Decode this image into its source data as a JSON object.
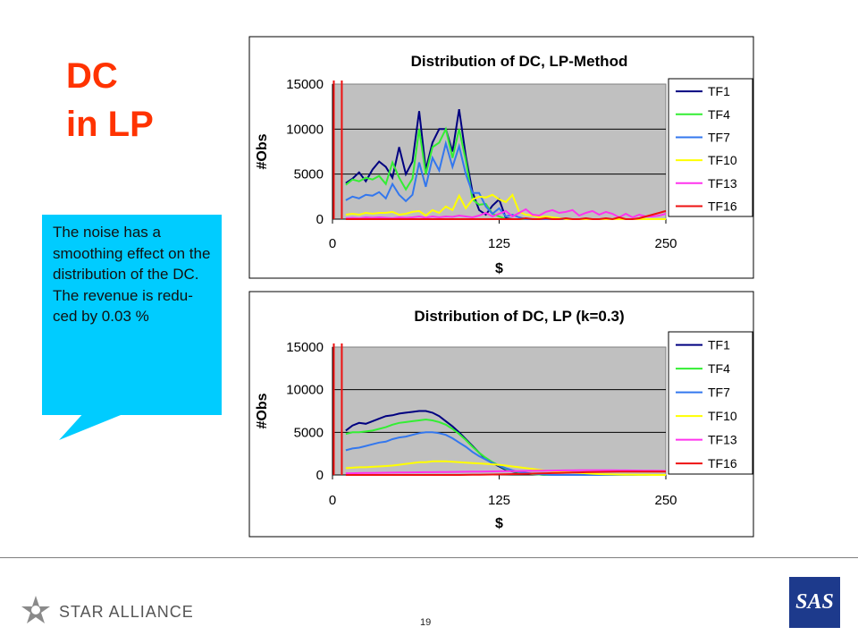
{
  "slide": {
    "title_line1": "DC",
    "title_line2": "in LP",
    "callout_text": "The noise has a smoothing effect on the distribution of the DC. The revenue is redu-ced by 0.03 %",
    "page_number": "19",
    "footer_logo_text": "STAR ALLIANCE",
    "brand_logo_text": "SAS"
  },
  "colors": {
    "title": "#ff3300",
    "callout": "#00ccff",
    "plot_area": "#c0c0c0",
    "TF1": "#000080",
    "TF4": "#33ee33",
    "TF7": "#3377ee",
    "TF10": "#ffff00",
    "TF13": "#ff33ee",
    "TF16": "#ee1111"
  },
  "chart_data": [
    {
      "type": "line",
      "title": "Distribution of DC, LP-Method",
      "xlabel": "$",
      "ylabel": "#Obs",
      "xlim": [
        0,
        250
      ],
      "ylim": [
        0,
        15000
      ],
      "xticks": [
        "0",
        "125",
        "250"
      ],
      "yticks": [
        "0",
        "5000",
        "10000",
        "15000"
      ],
      "legend_position": "right",
      "grid": true,
      "x": [
        0,
        5,
        10,
        15,
        20,
        25,
        30,
        35,
        40,
        45,
        50,
        55,
        60,
        65,
        70,
        75,
        80,
        85,
        90,
        95,
        100,
        105,
        110,
        115,
        120,
        125,
        130,
        135,
        140,
        145,
        150,
        155,
        160,
        165,
        170,
        175,
        180,
        185,
        190,
        195,
        200,
        205,
        210,
        215,
        220,
        225,
        230,
        235,
        240,
        245,
        250
      ],
      "series": [
        {
          "name": "TF1",
          "values": [
            null,
            null,
            4000,
            4500,
            5200,
            4200,
            5500,
            6400,
            5800,
            4600,
            8000,
            5000,
            6400,
            12000,
            5500,
            8500,
            10000,
            10000,
            7500,
            12200,
            7000,
            3000,
            1000,
            500,
            1500,
            2200,
            100,
            0,
            0,
            0,
            0,
            0,
            0,
            0,
            0,
            0,
            0,
            0,
            0,
            0,
            0,
            0,
            0,
            0,
            0,
            0,
            0,
            0,
            0,
            0,
            0
          ]
        },
        {
          "name": "TF4",
          "values": [
            null,
            null,
            3800,
            4400,
            4200,
            4600,
            4400,
            4800,
            3900,
            6300,
            4600,
            3300,
            4500,
            10000,
            5000,
            8000,
            8500,
            10000,
            6800,
            10000,
            6500,
            2200,
            1600,
            1700,
            600,
            300,
            0,
            0,
            0,
            0,
            0,
            0,
            0,
            0,
            0,
            0,
            0,
            0,
            0,
            0,
            0,
            0,
            0,
            0,
            0,
            0,
            0,
            0,
            0,
            0,
            0
          ]
        },
        {
          "name": "TF7",
          "values": [
            null,
            null,
            2100,
            2500,
            2300,
            2700,
            2600,
            3000,
            2300,
            3900,
            2700,
            2000,
            2700,
            6300,
            3600,
            6800,
            5400,
            8400,
            5800,
            8100,
            5000,
            2900,
            2900,
            1400,
            600,
            1200,
            300,
            500,
            200,
            0,
            0,
            0,
            0,
            0,
            0,
            0,
            0,
            0,
            0,
            0,
            0,
            0,
            0,
            0,
            0,
            0,
            0,
            0,
            0,
            0,
            0
          ]
        },
        {
          "name": "TF10",
          "values": [
            null,
            null,
            500,
            600,
            500,
            700,
            600,
            700,
            700,
            800,
            500,
            600,
            800,
            900,
            400,
            1000,
            700,
            1400,
            1000,
            2600,
            1200,
            2200,
            2500,
            2400,
            2700,
            2200,
            1900,
            2700,
            800,
            500,
            400,
            200,
            300,
            200,
            100,
            0,
            0,
            0,
            0,
            0,
            0,
            0,
            0,
            0,
            0,
            0,
            0,
            0,
            0,
            0,
            0
          ]
        },
        {
          "name": "TF13",
          "values": [
            null,
            null,
            100,
            150,
            100,
            200,
            150,
            200,
            150,
            100,
            200,
            150,
            200,
            300,
            150,
            300,
            200,
            300,
            250,
            400,
            300,
            200,
            400,
            700,
            300,
            600,
            900,
            300,
            700,
            1100,
            500,
            400,
            800,
            1000,
            700,
            800,
            1000,
            400,
            700,
            900,
            500,
            800,
            600,
            200,
            600,
            200,
            500,
            300,
            300,
            400,
            600
          ]
        },
        {
          "name": "TF16",
          "values": [
            null,
            null,
            0,
            0,
            0,
            0,
            0,
            0,
            0,
            0,
            0,
            0,
            0,
            0,
            0,
            0,
            0,
            0,
            0,
            0,
            0,
            0,
            0,
            0,
            0,
            0,
            0,
            0,
            0,
            100,
            0,
            0,
            100,
            0,
            0,
            100,
            0,
            0,
            100,
            0,
            0,
            100,
            0,
            200,
            0,
            0,
            100,
            300,
            500,
            700,
            900
          ]
        }
      ]
    },
    {
      "type": "line",
      "title": "Distribution of DC, LP (k=0.3)",
      "xlabel": "$",
      "ylabel": "#Obs",
      "xlim": [
        0,
        250
      ],
      "ylim": [
        0,
        15000
      ],
      "xticks": [
        "0",
        "125",
        "250"
      ],
      "yticks": [
        "0",
        "5000",
        "10000",
        "15000"
      ],
      "legend_position": "right",
      "grid": true,
      "x": [
        0,
        5,
        10,
        15,
        20,
        25,
        30,
        35,
        40,
        45,
        50,
        55,
        60,
        65,
        70,
        75,
        80,
        85,
        90,
        95,
        100,
        105,
        110,
        115,
        120,
        125,
        130,
        135,
        140,
        145,
        150,
        155,
        160,
        165,
        170,
        175,
        180,
        185,
        190,
        195,
        200,
        205,
        210,
        215,
        220,
        225,
        230,
        235,
        240,
        245,
        250
      ],
      "series": [
        {
          "name": "TF1",
          "values": [
            null,
            null,
            5200,
            5800,
            6100,
            6000,
            6300,
            6600,
            6900,
            7000,
            7200,
            7300,
            7400,
            7500,
            7500,
            7300,
            6900,
            6300,
            5700,
            5000,
            4200,
            3400,
            2600,
            1900,
            1400,
            1000,
            600,
            400,
            250,
            150,
            100,
            50,
            0,
            0,
            0,
            0,
            0,
            0,
            0,
            0,
            0,
            0,
            0,
            0,
            0,
            0,
            0,
            0,
            0,
            0,
            0
          ]
        },
        {
          "name": "TF4",
          "values": [
            null,
            null,
            4800,
            5000,
            5000,
            5100,
            5200,
            5400,
            5600,
            5900,
            6100,
            6200,
            6300,
            6400,
            6500,
            6400,
            6200,
            5900,
            5400,
            4800,
            4100,
            3300,
            2600,
            2000,
            1500,
            1100,
            700,
            450,
            300,
            200,
            100,
            50,
            0,
            0,
            0,
            0,
            0,
            0,
            0,
            0,
            0,
            0,
            0,
            0,
            0,
            0,
            0,
            0,
            0,
            0,
            0
          ]
        },
        {
          "name": "TF7",
          "values": [
            null,
            null,
            2900,
            3100,
            3200,
            3400,
            3600,
            3800,
            3900,
            4200,
            4400,
            4500,
            4700,
            4900,
            5000,
            5000,
            4900,
            4700,
            4300,
            3800,
            3300,
            2700,
            2200,
            1800,
            1400,
            1100,
            800,
            550,
            350,
            250,
            150,
            100,
            50,
            0,
            0,
            0,
            0,
            0,
            0,
            0,
            0,
            0,
            0,
            0,
            0,
            0,
            0,
            0,
            0,
            0,
            0
          ]
        },
        {
          "name": "TF10",
          "values": [
            null,
            null,
            800,
            850,
            900,
            900,
            950,
            1000,
            1050,
            1100,
            1200,
            1300,
            1400,
            1500,
            1500,
            1600,
            1600,
            1600,
            1550,
            1500,
            1450,
            1400,
            1350,
            1300,
            1250,
            1200,
            1100,
            1000,
            900,
            800,
            700,
            600,
            500,
            450,
            400,
            350,
            300,
            250,
            200,
            150,
            100,
            80,
            60,
            40,
            30,
            20,
            10,
            10,
            0,
            0,
            0
          ]
        },
        {
          "name": "TF13",
          "values": [
            null,
            null,
            200,
            200,
            220,
            230,
            240,
            250,
            260,
            270,
            280,
            290,
            300,
            310,
            320,
            330,
            340,
            350,
            360,
            370,
            380,
            390,
            400,
            410,
            420,
            430,
            440,
            450,
            460,
            470,
            480,
            490,
            500,
            510,
            520,
            530,
            540,
            550,
            560,
            560,
            560,
            560,
            550,
            540,
            530,
            520,
            510,
            500,
            490,
            480,
            470
          ]
        },
        {
          "name": "TF16",
          "values": [
            null,
            null,
            0,
            0,
            0,
            0,
            0,
            0,
            0,
            0,
            0,
            0,
            0,
            0,
            0,
            0,
            0,
            0,
            0,
            0,
            10,
            20,
            30,
            40,
            50,
            60,
            80,
            100,
            120,
            140,
            160,
            180,
            200,
            220,
            240,
            260,
            280,
            300,
            320,
            340,
            360,
            370,
            380,
            390,
            400,
            400,
            400,
            400,
            400,
            400,
            400
          ]
        }
      ]
    }
  ]
}
